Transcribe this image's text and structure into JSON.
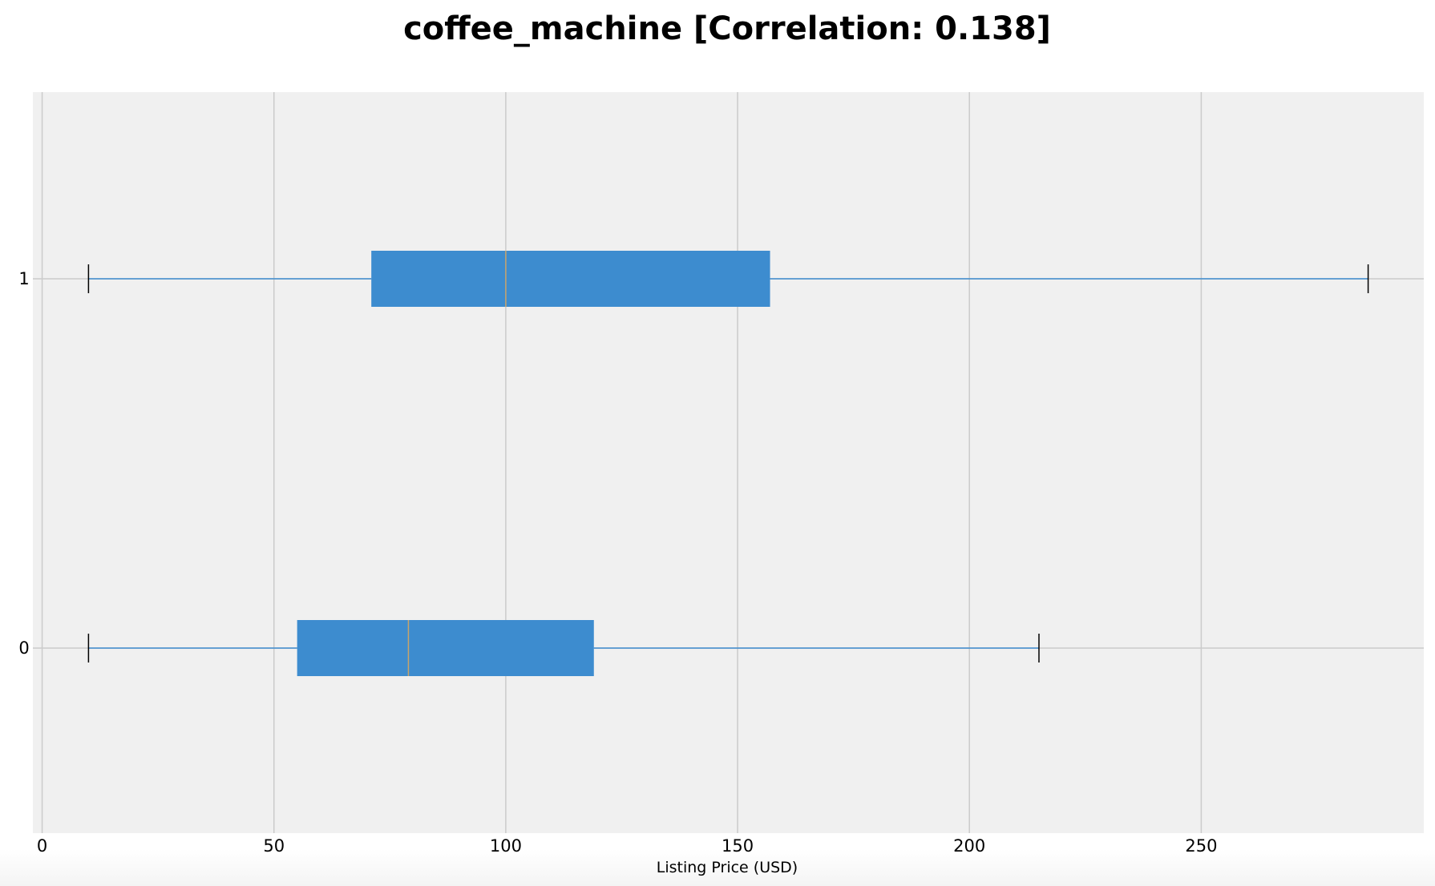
{
  "chart_data": {
    "type": "boxplot",
    "orientation": "horizontal",
    "title": "coffee_machine  [Correlation: 0.138]",
    "xlabel": "Listing Price (USD)",
    "ylabel": "",
    "xlim": [
      -2,
      298
    ],
    "xticks": [
      0,
      50,
      100,
      150,
      200,
      250
    ],
    "categories": [
      "1",
      "0"
    ],
    "grid": true,
    "series": [
      {
        "name": "1",
        "whisker_low": 10,
        "q1": 71,
        "median": 100,
        "q3": 157,
        "whisker_high": 286
      },
      {
        "name": "0",
        "whisker_low": 10,
        "q1": 55,
        "median": 79,
        "q3": 119,
        "whisker_high": 215
      }
    ],
    "colors": {
      "box": "#3d8ccf",
      "median": "#c9a46a",
      "whisker": "#3d8ccf",
      "cap": "#000000",
      "plot_bg": "#f0f0f0",
      "grid": "#cbcbcb"
    }
  }
}
